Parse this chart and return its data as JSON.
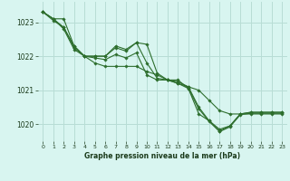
{
  "title": "Graphe pression niveau de la mer (hPa)",
  "background_color": "#d8f5f0",
  "grid_color": "#b8ddd5",
  "line_color": "#2d6e2d",
  "marker_color": "#2d6e2d",
  "xlim": [
    -0.5,
    23.5
  ],
  "ylim": [
    1019.5,
    1023.6
  ],
  "yticks": [
    1020,
    1021,
    1022,
    1023
  ],
  "xticks": [
    0,
    1,
    2,
    3,
    4,
    5,
    6,
    7,
    8,
    9,
    10,
    11,
    12,
    13,
    14,
    15,
    16,
    17,
    18,
    19,
    20,
    21,
    22,
    23
  ],
  "xlabel": "Graphe pression niveau de la mer (hPa)",
  "series": [
    [
      1023.3,
      1023.1,
      1023.1,
      1022.3,
      1022.0,
      1022.0,
      1022.0,
      1022.3,
      1022.2,
      1022.4,
      1022.35,
      1021.5,
      1021.3,
      1021.3,
      1021.05,
      1020.3,
      1020.1,
      1019.85,
      1019.95,
      1020.3,
      1020.35,
      1020.35,
      1020.35,
      1020.35
    ],
    [
      1023.3,
      1023.1,
      1022.8,
      1022.2,
      1022.0,
      1021.8,
      1021.7,
      1021.7,
      1021.7,
      1021.7,
      1021.55,
      1021.45,
      1021.3,
      1021.2,
      1021.1,
      1021.0,
      1020.7,
      1020.4,
      1020.3,
      1020.3,
      1020.3,
      1020.3,
      1020.3,
      1020.3
    ],
    [
      1023.3,
      1023.1,
      1022.85,
      1022.3,
      1022.0,
      1022.0,
      1022.0,
      1022.25,
      1022.15,
      1022.4,
      1021.8,
      1021.35,
      1021.3,
      1021.25,
      1021.1,
      1020.5,
      1020.1,
      1019.8,
      1019.95,
      1020.3,
      1020.35,
      1020.35,
      1020.35,
      1020.35
    ],
    [
      1023.3,
      1023.05,
      1022.85,
      1022.25,
      1022.0,
      1021.95,
      1021.9,
      1022.05,
      1021.95,
      1022.1,
      1021.45,
      1021.3,
      1021.3,
      1021.2,
      1021.05,
      1020.45,
      1020.08,
      1019.78,
      1019.92,
      1020.28,
      1020.32,
      1020.32,
      1020.32,
      1020.32
    ]
  ]
}
